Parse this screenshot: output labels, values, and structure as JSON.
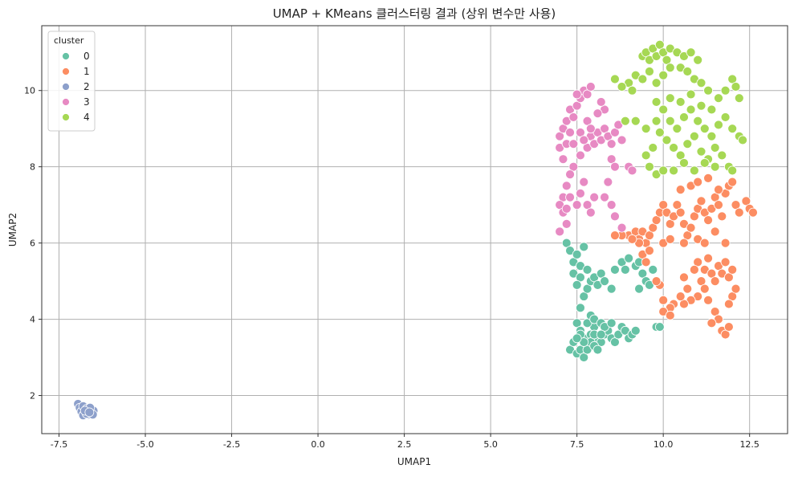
{
  "chart_data": {
    "type": "scatter",
    "title": "UMAP + KMeans 클러스터링 결과 (상위 변수만 사용)",
    "xlabel": "UMAP1",
    "ylabel": "UMAP2",
    "xlim": [
      -8.0,
      13.6
    ],
    "ylim": [
      1.0,
      11.7
    ],
    "xticks": [
      -7.5,
      -5.0,
      -2.5,
      0.0,
      2.5,
      5.0,
      7.5,
      10.0,
      12.5
    ],
    "xtick_labels": [
      "-7.5",
      "-5.0",
      "-2.5",
      "0.0",
      "2.5",
      "5.0",
      "7.5",
      "10.0",
      "12.5"
    ],
    "yticks": [
      2,
      4,
      6,
      8,
      10
    ],
    "ytick_labels": [
      "2",
      "4",
      "6",
      "8",
      "10"
    ],
    "grid": true,
    "legend": {
      "title": "cluster",
      "placement": "top-left"
    },
    "series": [
      {
        "name": "0",
        "color": "#66c2a5",
        "points": [
          [
            7.2,
            6.0
          ],
          [
            7.3,
            5.8
          ],
          [
            7.4,
            5.5
          ],
          [
            7.5,
            5.7
          ],
          [
            7.6,
            5.4
          ],
          [
            7.7,
            5.9
          ],
          [
            7.4,
            5.2
          ],
          [
            7.6,
            5.1
          ],
          [
            7.8,
            5.3
          ],
          [
            7.5,
            4.9
          ],
          [
            7.7,
            4.6
          ],
          [
            7.6,
            4.3
          ],
          [
            7.8,
            4.8
          ],
          [
            7.9,
            5.0
          ],
          [
            8.0,
            5.1
          ],
          [
            8.1,
            4.9
          ],
          [
            8.2,
            5.2
          ],
          [
            8.3,
            5.0
          ],
          [
            8.5,
            4.8
          ],
          [
            8.6,
            5.3
          ],
          [
            8.8,
            5.5
          ],
          [
            8.9,
            5.3
          ],
          [
            9.0,
            5.6
          ],
          [
            9.2,
            5.4
          ],
          [
            9.3,
            5.5
          ],
          [
            9.4,
            5.2
          ],
          [
            9.5,
            5.0
          ],
          [
            9.6,
            4.9
          ],
          [
            9.3,
            4.8
          ],
          [
            9.7,
            5.3
          ],
          [
            7.5,
            3.9
          ],
          [
            7.6,
            3.7
          ],
          [
            7.7,
            3.5
          ],
          [
            7.8,
            3.3
          ],
          [
            7.9,
            3.6
          ],
          [
            8.0,
            3.8
          ],
          [
            8.1,
            3.5
          ],
          [
            8.2,
            3.4
          ],
          [
            8.3,
            3.6
          ],
          [
            8.4,
            3.7
          ],
          [
            8.5,
            3.5
          ],
          [
            8.6,
            3.4
          ],
          [
            8.7,
            3.6
          ],
          [
            8.8,
            3.8
          ],
          [
            8.9,
            3.7
          ],
          [
            9.0,
            3.5
          ],
          [
            9.1,
            3.6
          ],
          [
            9.2,
            3.7
          ],
          [
            7.3,
            3.2
          ],
          [
            7.4,
            3.4
          ],
          [
            7.5,
            3.1
          ],
          [
            7.6,
            3.2
          ],
          [
            7.7,
            3.0
          ],
          [
            7.8,
            3.2
          ],
          [
            7.9,
            3.4
          ],
          [
            8.0,
            3.3
          ],
          [
            8.1,
            3.2
          ],
          [
            7.6,
            3.6
          ],
          [
            7.8,
            3.9
          ],
          [
            7.9,
            4.1
          ],
          [
            8.0,
            4.0
          ],
          [
            8.2,
            3.9
          ],
          [
            8.3,
            3.8
          ],
          [
            8.5,
            3.9
          ],
          [
            9.8,
            3.8
          ],
          [
            9.9,
            3.8
          ],
          [
            7.7,
            3.4
          ],
          [
            8.0,
            3.6
          ],
          [
            8.2,
            3.6
          ],
          [
            7.5,
            3.5
          ]
        ]
      },
      {
        "name": "1",
        "color": "#fc8d62",
        "points": [
          [
            9.0,
            6.2
          ],
          [
            9.2,
            6.3
          ],
          [
            9.3,
            6.1
          ],
          [
            9.4,
            6.3
          ],
          [
            9.5,
            6.0
          ],
          [
            9.6,
            6.2
          ],
          [
            9.7,
            6.4
          ],
          [
            9.8,
            6.6
          ],
          [
            9.9,
            6.8
          ],
          [
            10.0,
            7.0
          ],
          [
            10.1,
            6.8
          ],
          [
            10.2,
            6.5
          ],
          [
            10.3,
            6.7
          ],
          [
            10.4,
            7.0
          ],
          [
            10.5,
            6.8
          ],
          [
            10.6,
            6.5
          ],
          [
            10.7,
            6.2
          ],
          [
            10.8,
            6.4
          ],
          [
            10.9,
            6.7
          ],
          [
            11.0,
            6.9
          ],
          [
            11.1,
            7.1
          ],
          [
            11.2,
            6.8
          ],
          [
            11.3,
            6.6
          ],
          [
            11.4,
            6.9
          ],
          [
            11.5,
            7.2
          ],
          [
            11.6,
            7.0
          ],
          [
            11.7,
            6.7
          ],
          [
            11.8,
            7.3
          ],
          [
            11.9,
            7.5
          ],
          [
            12.0,
            7.6
          ],
          [
            12.1,
            7.0
          ],
          [
            12.2,
            6.8
          ],
          [
            12.4,
            7.1
          ],
          [
            12.5,
            6.9
          ],
          [
            12.6,
            6.8
          ],
          [
            10.5,
            7.4
          ],
          [
            10.8,
            7.5
          ],
          [
            11.0,
            7.6
          ],
          [
            11.3,
            7.7
          ],
          [
            11.6,
            7.4
          ],
          [
            9.4,
            5.7
          ],
          [
            9.5,
            5.5
          ],
          [
            9.6,
            5.8
          ],
          [
            10.0,
            6.0
          ],
          [
            10.2,
            6.1
          ],
          [
            10.6,
            6.0
          ],
          [
            11.0,
            6.1
          ],
          [
            11.2,
            6.0
          ],
          [
            11.5,
            6.3
          ],
          [
            11.8,
            6.0
          ],
          [
            11.0,
            5.5
          ],
          [
            11.2,
            5.3
          ],
          [
            11.3,
            5.6
          ],
          [
            11.4,
            5.2
          ],
          [
            11.5,
            5.0
          ],
          [
            11.6,
            5.4
          ],
          [
            11.7,
            5.2
          ],
          [
            11.8,
            5.5
          ],
          [
            11.9,
            5.1
          ],
          [
            12.0,
            5.3
          ],
          [
            11.1,
            5.0
          ],
          [
            11.2,
            4.8
          ],
          [
            11.0,
            4.6
          ],
          [
            10.8,
            4.5
          ],
          [
            10.7,
            4.8
          ],
          [
            10.6,
            4.4
          ],
          [
            10.5,
            4.6
          ],
          [
            10.3,
            4.4
          ],
          [
            10.2,
            4.3
          ],
          [
            10.0,
            4.2
          ],
          [
            9.9,
            4.9
          ],
          [
            9.8,
            5.0
          ],
          [
            10.0,
            4.5
          ],
          [
            11.3,
            4.5
          ],
          [
            11.5,
            4.2
          ],
          [
            11.6,
            4.0
          ],
          [
            11.7,
            3.7
          ],
          [
            11.8,
            3.6
          ],
          [
            11.9,
            3.8
          ],
          [
            11.4,
            3.9
          ],
          [
            10.2,
            4.1
          ],
          [
            10.6,
            5.1
          ],
          [
            10.9,
            5.3
          ],
          [
            12.0,
            4.6
          ],
          [
            12.1,
            4.8
          ],
          [
            11.9,
            4.4
          ],
          [
            9.3,
            6.0
          ],
          [
            9.1,
            6.1
          ],
          [
            8.8,
            6.2
          ],
          [
            8.6,
            6.2
          ]
        ]
      },
      {
        "name": "2",
        "color": "#8da0cb",
        "points": [
          [
            -6.95,
            1.78
          ],
          [
            -6.9,
            1.68
          ],
          [
            -6.85,
            1.58
          ],
          [
            -6.8,
            1.72
          ],
          [
            -6.75,
            1.55
          ],
          [
            -6.7,
            1.65
          ],
          [
            -6.65,
            1.5
          ],
          [
            -6.6,
            1.62
          ],
          [
            -6.55,
            1.55
          ],
          [
            -6.5,
            1.6
          ],
          [
            -6.8,
            1.48
          ],
          [
            -6.7,
            1.52
          ],
          [
            -6.6,
            1.68
          ],
          [
            -6.52,
            1.5
          ],
          [
            -6.75,
            1.6
          ],
          [
            -6.62,
            1.56
          ]
        ]
      },
      {
        "name": "3",
        "color": "#e78ac3",
        "points": [
          [
            7.0,
            8.5
          ],
          [
            7.0,
            8.8
          ],
          [
            7.1,
            8.2
          ],
          [
            7.1,
            9.0
          ],
          [
            7.2,
            8.6
          ],
          [
            7.2,
            9.2
          ],
          [
            7.3,
            8.9
          ],
          [
            7.3,
            9.5
          ],
          [
            7.4,
            9.3
          ],
          [
            7.5,
            9.6
          ],
          [
            7.6,
            9.8
          ],
          [
            7.7,
            10.0
          ],
          [
            7.8,
            9.9
          ],
          [
            7.9,
            10.1
          ],
          [
            7.5,
            9.9
          ],
          [
            7.4,
            8.0
          ],
          [
            7.3,
            7.8
          ],
          [
            7.2,
            7.5
          ],
          [
            7.1,
            7.2
          ],
          [
            7.0,
            7.0
          ],
          [
            7.1,
            6.8
          ],
          [
            7.2,
            6.5
          ],
          [
            7.0,
            6.3
          ],
          [
            7.2,
            6.9
          ],
          [
            7.3,
            7.2
          ],
          [
            7.5,
            7.0
          ],
          [
            7.6,
            7.3
          ],
          [
            7.7,
            7.6
          ],
          [
            7.8,
            7.0
          ],
          [
            7.9,
            6.8
          ],
          [
            8.0,
            7.2
          ],
          [
            7.6,
            8.3
          ],
          [
            7.8,
            8.5
          ],
          [
            7.9,
            8.8
          ],
          [
            8.0,
            8.6
          ],
          [
            8.1,
            8.9
          ],
          [
            8.2,
            8.7
          ],
          [
            8.3,
            9.0
          ],
          [
            8.4,
            8.8
          ],
          [
            8.5,
            8.6
          ],
          [
            8.6,
            8.9
          ],
          [
            8.7,
            9.1
          ],
          [
            8.8,
            8.7
          ],
          [
            8.3,
            9.5
          ],
          [
            8.2,
            9.7
          ],
          [
            8.1,
            9.4
          ],
          [
            8.5,
            8.2
          ],
          [
            8.6,
            8.0
          ],
          [
            8.4,
            7.6
          ],
          [
            8.3,
            7.2
          ],
          [
            8.5,
            7.0
          ],
          [
            8.6,
            6.7
          ],
          [
            9.0,
            8.0
          ],
          [
            9.1,
            7.9
          ],
          [
            8.8,
            6.4
          ],
          [
            7.4,
            8.6
          ],
          [
            7.6,
            8.9
          ],
          [
            7.7,
            8.7
          ],
          [
            7.8,
            9.2
          ],
          [
            7.9,
            9.0
          ]
        ]
      },
      {
        "name": "4",
        "color": "#a6d854",
        "points": [
          [
            9.4,
            10.9
          ],
          [
            9.5,
            11.0
          ],
          [
            9.6,
            10.8
          ],
          [
            9.7,
            11.1
          ],
          [
            9.8,
            10.9
          ],
          [
            9.9,
            11.2
          ],
          [
            10.0,
            11.0
          ],
          [
            10.1,
            10.8
          ],
          [
            10.2,
            11.1
          ],
          [
            10.4,
            11.0
          ],
          [
            10.6,
            10.9
          ],
          [
            10.8,
            11.0
          ],
          [
            11.0,
            10.8
          ],
          [
            10.5,
            10.6
          ],
          [
            10.7,
            10.5
          ],
          [
            10.9,
            10.3
          ],
          [
            11.1,
            10.2
          ],
          [
            11.3,
            10.0
          ],
          [
            10.0,
            10.4
          ],
          [
            10.2,
            10.6
          ],
          [
            9.0,
            10.2
          ],
          [
            9.2,
            10.4
          ],
          [
            9.4,
            10.3
          ],
          [
            9.6,
            10.5
          ],
          [
            9.8,
            10.2
          ],
          [
            8.6,
            10.3
          ],
          [
            8.8,
            10.1
          ],
          [
            9.1,
            10.0
          ],
          [
            11.6,
            9.8
          ],
          [
            11.8,
            10.0
          ],
          [
            12.0,
            10.3
          ],
          [
            12.1,
            10.1
          ],
          [
            12.2,
            9.8
          ],
          [
            9.8,
            9.7
          ],
          [
            10.0,
            9.5
          ],
          [
            10.2,
            9.2
          ],
          [
            10.4,
            9.0
          ],
          [
            10.6,
            9.3
          ],
          [
            10.8,
            9.5
          ],
          [
            11.0,
            9.2
          ],
          [
            11.2,
            9.0
          ],
          [
            11.4,
            8.8
          ],
          [
            11.6,
            9.1
          ],
          [
            11.8,
            9.3
          ],
          [
            12.0,
            9.0
          ],
          [
            12.2,
            8.8
          ],
          [
            12.3,
            8.7
          ],
          [
            9.7,
            8.5
          ],
          [
            9.9,
            8.9
          ],
          [
            10.1,
            8.7
          ],
          [
            10.3,
            8.5
          ],
          [
            10.5,
            8.3
          ],
          [
            10.7,
            8.6
          ],
          [
            10.9,
            8.8
          ],
          [
            11.1,
            8.4
          ],
          [
            11.3,
            8.2
          ],
          [
            11.5,
            8.5
          ],
          [
            11.7,
            8.3
          ],
          [
            11.9,
            8.0
          ],
          [
            9.5,
            8.3
          ],
          [
            9.6,
            8.0
          ],
          [
            9.8,
            7.8
          ],
          [
            10.0,
            7.9
          ],
          [
            10.3,
            7.9
          ],
          [
            10.6,
            8.1
          ],
          [
            10.9,
            7.9
          ],
          [
            11.2,
            8.1
          ],
          [
            11.5,
            8.0
          ],
          [
            12.0,
            7.9
          ],
          [
            9.2,
            9.2
          ],
          [
            8.9,
            9.2
          ],
          [
            10.2,
            9.8
          ],
          [
            10.5,
            9.7
          ],
          [
            10.8,
            9.9
          ],
          [
            11.1,
            9.6
          ],
          [
            11.4,
            9.5
          ],
          [
            9.5,
            9.0
          ],
          [
            9.8,
            9.2
          ]
        ]
      }
    ]
  }
}
